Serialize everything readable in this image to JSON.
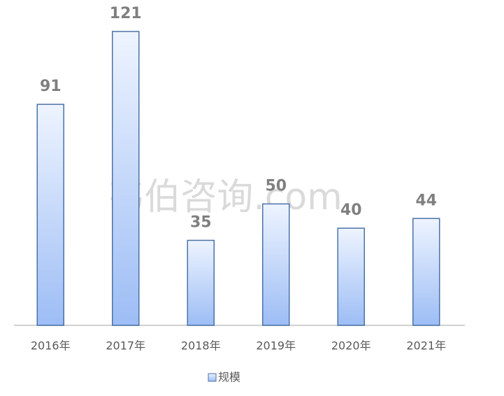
{
  "chart_data": {
    "type": "bar",
    "categories": [
      "2016年",
      "2017年",
      "2018年",
      "2019年",
      "2020年",
      "2021年"
    ],
    "series": [
      {
        "name": "规模",
        "color": "#9dbdf5",
        "values": [
          91,
          121,
          35,
          50,
          40,
          44
        ]
      }
    ],
    "watermark": "韦伯咨询.com"
  }
}
